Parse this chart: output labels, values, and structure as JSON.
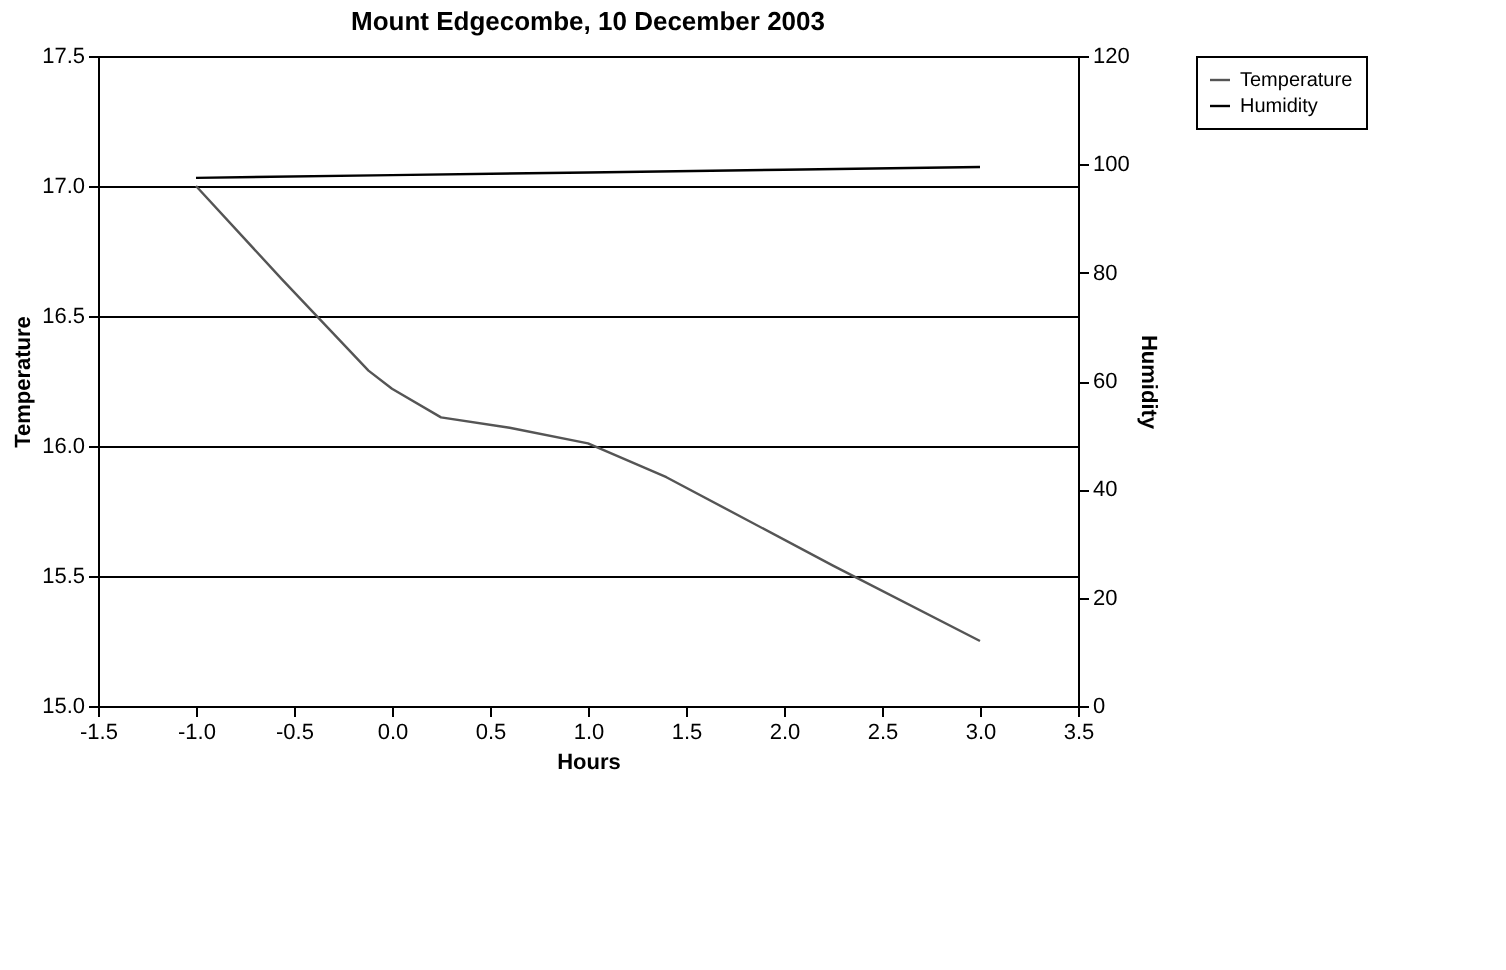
{
  "chart_data": {
    "type": "line",
    "title": "Mount Edgecombe, 10 December 2003",
    "xlabel": "Hours",
    "ylabel": "Temperature",
    "y2label": "Humidity",
    "xlim": [
      -1.5,
      3.5
    ],
    "xticks": [
      {
        "value": -1.5,
        "label": "-1.5"
      },
      {
        "value": -1,
        "label": "-1.0"
      },
      {
        "value": -0.5,
        "label": "-0.5"
      },
      {
        "value": 0,
        "label": "0.0"
      },
      {
        "value": 0.5,
        "label": "0.5"
      },
      {
        "value": 1,
        "label": "1.0"
      },
      {
        "value": 1.5,
        "label": "1.5"
      },
      {
        "value": 2,
        "label": "2.0"
      },
      {
        "value": 2.5,
        "label": "2.5"
      },
      {
        "value": 3,
        "label": "3.0"
      },
      {
        "value": 3.5,
        "label": "3.5"
      }
    ],
    "ylim": [
      15.0,
      17.5
    ],
    "yticks": [
      {
        "value": 15,
        "label": "15.0"
      },
      15.5,
      {
        "value": 16,
        "label": "16.0"
      },
      16.5,
      {
        "value": 17,
        "label": "17.0"
      },
      17.5
    ],
    "y2lim": [
      0,
      120
    ],
    "y2ticks": [
      0,
      20,
      40,
      60,
      80,
      100,
      120
    ],
    "grid": "y",
    "legend": "right",
    "line_style": "solid",
    "marker": "none",
    "series": [
      {
        "name": "Temperature",
        "color": "#555555",
        "x": [
          -1.0,
          -0.56,
          -0.12,
          0,
          0.25,
          0.6,
          1.0,
          1.4,
          2.25,
          3.0
        ],
        "values": [
          17.0,
          16.64,
          16.29,
          16.22,
          16.11,
          16.07,
          16.01,
          15.88,
          15.54,
          15.25
        ]
      },
      {
        "name": "Humidity",
        "color": "#000000",
        "axis": "y2",
        "x": [
          -1.0,
          0,
          1.0,
          2.0,
          3.0
        ],
        "values": [
          97.5,
          98,
          98.5,
          99,
          99.5
        ]
      }
    ]
  }
}
